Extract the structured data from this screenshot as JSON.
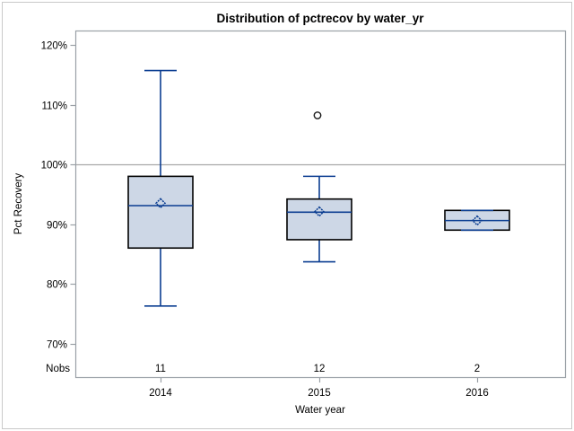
{
  "chart_data": {
    "type": "boxplot",
    "title": "Distribution of pctrecov by water_yr",
    "xlabel": "Water year",
    "ylabel": "Pct Recovery",
    "categories": [
      "2014",
      "2015",
      "2016"
    ],
    "nobs_label": "Nobs",
    "yticks": [
      70,
      80,
      90,
      100,
      110,
      120
    ],
    "ytick_suffix": "%",
    "ylim": [
      64.4,
      122.4
    ],
    "reference_line": 100,
    "grid": false,
    "legend": "none",
    "series": [
      {
        "category": "2014",
        "n": 11,
        "whisker_low": 76.3,
        "q1": 86,
        "median": 93.1,
        "q3": 98,
        "whisker_high": 115.7,
        "mean": 93.5,
        "outliers": []
      },
      {
        "category": "2015",
        "n": 12,
        "whisker_low": 83.7,
        "q1": 87.4,
        "median": 92,
        "q3": 94.2,
        "whisker_high": 98,
        "mean": 92.1,
        "outliers": [
          108.2
        ]
      },
      {
        "category": "2016",
        "n": 2,
        "whisker_low": 89,
        "q1": 89,
        "median": 90.6,
        "q3": 92.3,
        "whisker_high": 92.3,
        "mean": 90.6,
        "outliers": []
      }
    ],
    "colors": {
      "box_fill": "#cdd7e6",
      "box_border": "#000000",
      "line": "#0b3d91",
      "reference_line": "#a8a8a8",
      "frame": "#9aa0a6",
      "outlier": "#1a1a1a",
      "text": "#000000",
      "background": "#ffffff"
    }
  }
}
